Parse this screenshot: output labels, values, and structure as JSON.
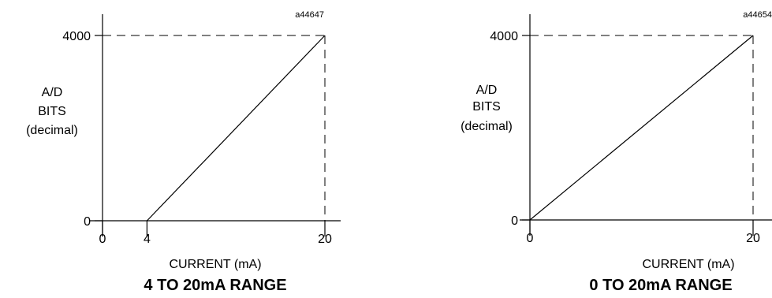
{
  "chart_data": [
    {
      "type": "line",
      "ref_id": "a44647",
      "title": "4 TO 20mA RANGE",
      "xlabel": "CURRENT (mA)",
      "ylabel": [
        "A/D",
        "BITS",
        "(decimal)"
      ],
      "x_ticks": [
        "0",
        "4",
        "20"
      ],
      "y_ticks": [
        "0",
        "4000"
      ],
      "xlim": [
        0,
        20
      ],
      "ylim": [
        0,
        4000
      ],
      "grid": false,
      "series": [
        {
          "x": [
            4,
            20
          ],
          "y": [
            0,
            4000
          ]
        }
      ],
      "reference_lines": [
        {
          "style": "dashed",
          "orientation": "horizontal",
          "at": 4000
        },
        {
          "style": "dashed",
          "orientation": "vertical",
          "at": 20
        }
      ]
    },
    {
      "type": "line",
      "ref_id": "a44654",
      "title": "0 TO 20mA RANGE",
      "xlabel": "CURRENT (mA)",
      "ylabel": [
        "A/D",
        "BITS",
        "(decimal)"
      ],
      "x_ticks": [
        "0",
        "20"
      ],
      "y_ticks": [
        "0",
        "4000"
      ],
      "xlim": [
        0,
        20
      ],
      "ylim": [
        0,
        4000
      ],
      "grid": false,
      "series": [
        {
          "x": [
            0,
            20
          ],
          "y": [
            0,
            4000
          ]
        }
      ],
      "reference_lines": [
        {
          "style": "dashed",
          "orientation": "horizontal",
          "at": 4000
        },
        {
          "style": "dashed",
          "orientation": "vertical",
          "at": 20
        }
      ]
    }
  ]
}
